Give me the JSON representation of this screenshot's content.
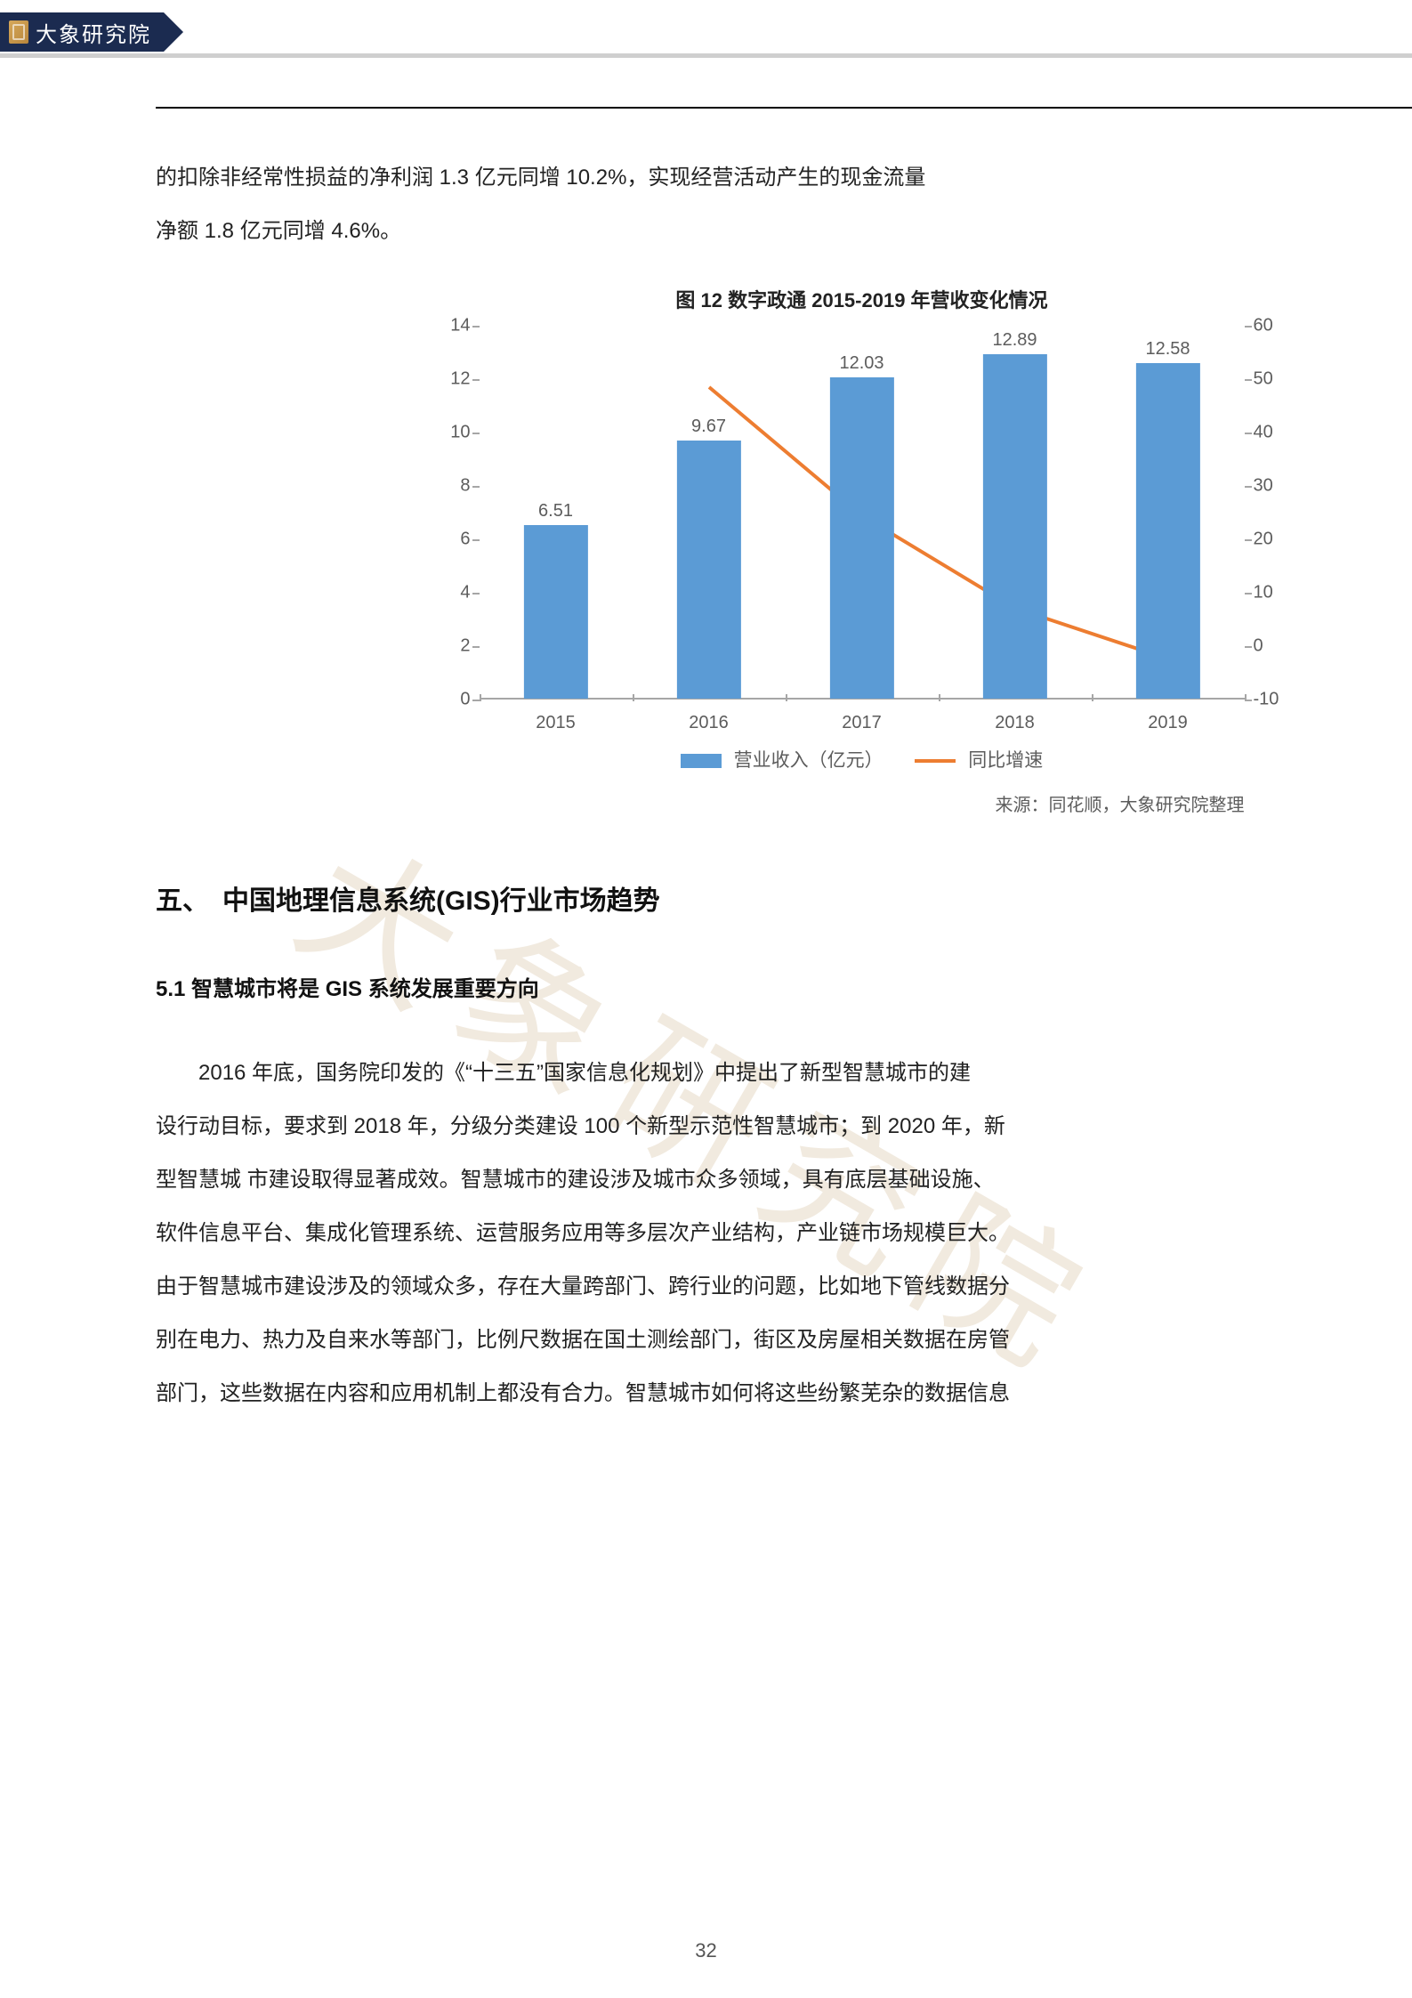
{
  "header": {
    "org_name": "大象研究院"
  },
  "intro_paragraph_lines": [
    "的扣除非经常性损益的净利润 1.3 亿元同增 10.2%，实现经营活动产生的现金流量",
    "净额 1.8 亿元同增 4.6%。"
  ],
  "chart": {
    "type": "bar+line",
    "title": "图 12 数字政通 2015-2019 年营收变化情况",
    "categories": [
      "2015",
      "2016",
      "2017",
      "2018",
      "2019"
    ],
    "bar_series": {
      "name": "营业收入（亿元）",
      "values": [
        6.51,
        9.67,
        12.03,
        12.89,
        12.58
      ],
      "value_labels": [
        "6.51",
        "9.67",
        "12.03",
        "12.89",
        "12.58"
      ],
      "color": "#5b9bd5"
    },
    "line_series": {
      "name": "同比增速",
      "values": [
        null,
        48.5,
        24.4,
        7.1,
        -2.4
      ],
      "color": "#ed7d31",
      "line_width": 4
    },
    "y_left": {
      "min": 0,
      "max": 14,
      "step": 2,
      "ticks": [
        0,
        2,
        4,
        6,
        8,
        10,
        12,
        14
      ]
    },
    "y_right": {
      "min": -10,
      "max": 60,
      "step": 10,
      "ticks": [
        -10,
        0,
        10,
        20,
        30,
        40,
        50,
        60
      ]
    },
    "axis_color": "#a6a6a6",
    "tick_label_color": "#5c5c5c",
    "tick_label_fontsize": 20,
    "bar_width_ratio": 0.42,
    "background_color": "#ffffff",
    "legend": {
      "bar_label": "营业收入（亿元）",
      "line_label": "同比增速"
    },
    "source_line": "来源：同花顺，大象研究院整理"
  },
  "section_heading": "五、　中国地理信息系统(GIS)行业市场趋势",
  "subsection_heading": "5.1 智慧城市将是 GIS 系统发展重要方向",
  "body_paragraph_lines": [
    "2016 年底，国务院印发的《“十三五”国家信息化规划》中提出了新型智慧城市的建",
    "设行动目标，要求到 2018 年，分级分类建设 100 个新型示范性智慧城市；到 2020 年，新",
    "型智慧城 市建设取得显著成效。智慧城市的建设涉及城市众多领域，具有底层基础设施、",
    "软件信息平台、集成化管理系统、运营服务应用等多层次产业结构，产业链市场规模巨大。",
    "由于智慧城市建设涉及的领域众多，存在大量跨部门、跨行业的问题，比如地下管线数据分",
    "别在电力、热力及自来水等部门，比例尺数据在国土测绘部门，街区及房屋相关数据在房管",
    "部门，这些数据在内容和应用机制上都没有合力。智慧城市如何将这些纷繁芜杂的数据信息"
  ],
  "watermark_text": "大象研究院",
  "page_number": "32"
}
